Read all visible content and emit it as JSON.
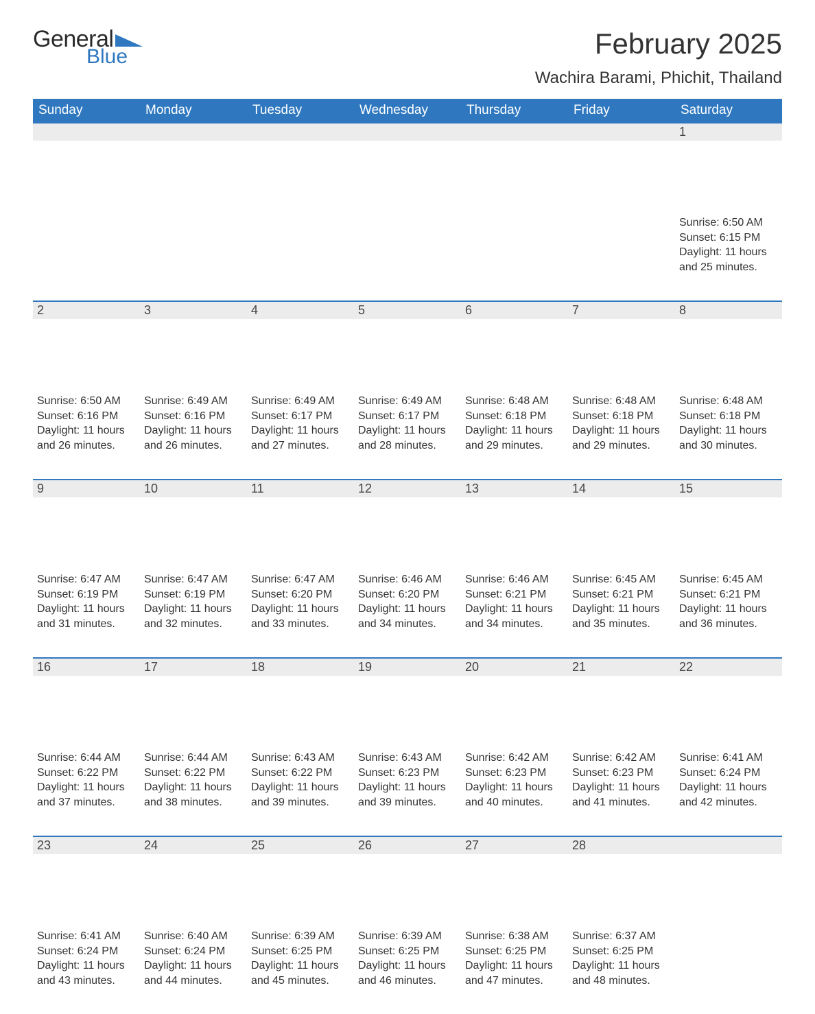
{
  "logo": {
    "text_general": "General",
    "text_blue": "Blue",
    "triangle_color": "#2f78c0"
  },
  "title": "February 2025",
  "location": "Wachira Barami, Phichit, Thailand",
  "colors": {
    "header_bg": "#2f78c0",
    "header_text": "#ffffff",
    "daynum_bg": "#ececec",
    "daynum_border": "#2f78c0",
    "body_text": "#333333",
    "page_bg": "#ffffff"
  },
  "typography": {
    "title_fontsize": 42,
    "location_fontsize": 24,
    "dayheader_fontsize": 19,
    "daynum_fontsize": 18,
    "body_fontsize": 16,
    "font_family": "Arial"
  },
  "day_headers": [
    "Sunday",
    "Monday",
    "Tuesday",
    "Wednesday",
    "Thursday",
    "Friday",
    "Saturday"
  ],
  "weeks": [
    [
      null,
      null,
      null,
      null,
      null,
      null,
      {
        "n": "1",
        "sunrise": "6:50 AM",
        "sunset": "6:15 PM",
        "daylight": "11 hours and 25 minutes."
      }
    ],
    [
      {
        "n": "2",
        "sunrise": "6:50 AM",
        "sunset": "6:16 PM",
        "daylight": "11 hours and 26 minutes."
      },
      {
        "n": "3",
        "sunrise": "6:49 AM",
        "sunset": "6:16 PM",
        "daylight": "11 hours and 26 minutes."
      },
      {
        "n": "4",
        "sunrise": "6:49 AM",
        "sunset": "6:17 PM",
        "daylight": "11 hours and 27 minutes."
      },
      {
        "n": "5",
        "sunrise": "6:49 AM",
        "sunset": "6:17 PM",
        "daylight": "11 hours and 28 minutes."
      },
      {
        "n": "6",
        "sunrise": "6:48 AM",
        "sunset": "6:18 PM",
        "daylight": "11 hours and 29 minutes."
      },
      {
        "n": "7",
        "sunrise": "6:48 AM",
        "sunset": "6:18 PM",
        "daylight": "11 hours and 29 minutes."
      },
      {
        "n": "8",
        "sunrise": "6:48 AM",
        "sunset": "6:18 PM",
        "daylight": "11 hours and 30 minutes."
      }
    ],
    [
      {
        "n": "9",
        "sunrise": "6:47 AM",
        "sunset": "6:19 PM",
        "daylight": "11 hours and 31 minutes."
      },
      {
        "n": "10",
        "sunrise": "6:47 AM",
        "sunset": "6:19 PM",
        "daylight": "11 hours and 32 minutes."
      },
      {
        "n": "11",
        "sunrise": "6:47 AM",
        "sunset": "6:20 PM",
        "daylight": "11 hours and 33 minutes."
      },
      {
        "n": "12",
        "sunrise": "6:46 AM",
        "sunset": "6:20 PM",
        "daylight": "11 hours and 34 minutes."
      },
      {
        "n": "13",
        "sunrise": "6:46 AM",
        "sunset": "6:21 PM",
        "daylight": "11 hours and 34 minutes."
      },
      {
        "n": "14",
        "sunrise": "6:45 AM",
        "sunset": "6:21 PM",
        "daylight": "11 hours and 35 minutes."
      },
      {
        "n": "15",
        "sunrise": "6:45 AM",
        "sunset": "6:21 PM",
        "daylight": "11 hours and 36 minutes."
      }
    ],
    [
      {
        "n": "16",
        "sunrise": "6:44 AM",
        "sunset": "6:22 PM",
        "daylight": "11 hours and 37 minutes."
      },
      {
        "n": "17",
        "sunrise": "6:44 AM",
        "sunset": "6:22 PM",
        "daylight": "11 hours and 38 minutes."
      },
      {
        "n": "18",
        "sunrise": "6:43 AM",
        "sunset": "6:22 PM",
        "daylight": "11 hours and 39 minutes."
      },
      {
        "n": "19",
        "sunrise": "6:43 AM",
        "sunset": "6:23 PM",
        "daylight": "11 hours and 39 minutes."
      },
      {
        "n": "20",
        "sunrise": "6:42 AM",
        "sunset": "6:23 PM",
        "daylight": "11 hours and 40 minutes."
      },
      {
        "n": "21",
        "sunrise": "6:42 AM",
        "sunset": "6:23 PM",
        "daylight": "11 hours and 41 minutes."
      },
      {
        "n": "22",
        "sunrise": "6:41 AM",
        "sunset": "6:24 PM",
        "daylight": "11 hours and 42 minutes."
      }
    ],
    [
      {
        "n": "23",
        "sunrise": "6:41 AM",
        "sunset": "6:24 PM",
        "daylight": "11 hours and 43 minutes."
      },
      {
        "n": "24",
        "sunrise": "6:40 AM",
        "sunset": "6:24 PM",
        "daylight": "11 hours and 44 minutes."
      },
      {
        "n": "25",
        "sunrise": "6:39 AM",
        "sunset": "6:25 PM",
        "daylight": "11 hours and 45 minutes."
      },
      {
        "n": "26",
        "sunrise": "6:39 AM",
        "sunset": "6:25 PM",
        "daylight": "11 hours and 46 minutes."
      },
      {
        "n": "27",
        "sunrise": "6:38 AM",
        "sunset": "6:25 PM",
        "daylight": "11 hours and 47 minutes."
      },
      {
        "n": "28",
        "sunrise": "6:37 AM",
        "sunset": "6:25 PM",
        "daylight": "11 hours and 48 minutes."
      },
      null
    ]
  ],
  "labels": {
    "sunrise": "Sunrise:",
    "sunset": "Sunset:",
    "daylight": "Daylight:"
  }
}
